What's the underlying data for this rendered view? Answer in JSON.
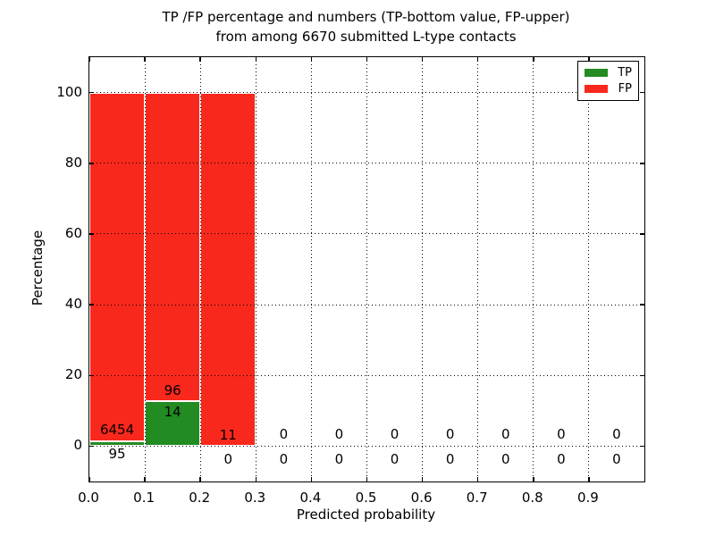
{
  "chart_data": {
    "type": "bar",
    "stacked": true,
    "title_line1": "TP /FP percentage and numbers (TP-bottom value, FP-upper)",
    "title_line2": "from among 6670 submitted L-type contacts",
    "xlabel": "Predicted probability",
    "ylabel": "Percentage",
    "total_submitted_contacts": 6670,
    "xlim": [
      0.0,
      1.0
    ],
    "ylim": [
      -10,
      110
    ],
    "yticks": [
      0,
      20,
      40,
      60,
      80,
      100
    ],
    "ytick_labels": [
      "0",
      "20",
      "40",
      "60",
      "80",
      "100"
    ],
    "xticks": [
      0.0,
      0.1,
      0.2,
      0.3,
      0.4,
      0.5,
      0.6,
      0.7,
      0.8,
      0.9
    ],
    "xtick_labels": [
      "0.0",
      "0.1",
      "0.2",
      "0.3",
      "0.4",
      "0.5",
      "0.6",
      "0.7",
      "0.8",
      "0.9"
    ],
    "grid": "dotted-black-on-top",
    "tp_color": "#228b22",
    "fp_color": "#f9281c",
    "legend": {
      "position": "upper-right",
      "entries": [
        {
          "label": "TP",
          "color": "#228b22"
        },
        {
          "label": "FP",
          "color": "#f9281c"
        }
      ]
    },
    "bins": [
      {
        "range": [
          0.0,
          0.1
        ],
        "tp": 95,
        "fp": 6454,
        "tp_pct": 1.45,
        "fp_pct": 98.55,
        "fp_label_y": 4.6,
        "tp_label_y": -2.2
      },
      {
        "range": [
          0.1,
          0.2
        ],
        "tp": 14,
        "fp": 96,
        "tp_pct": 12.73,
        "fp_pct": 87.27,
        "fp_label_y": 15.8,
        "tp_label_y": 9.7
      },
      {
        "range": [
          0.2,
          0.3
        ],
        "tp": 0,
        "fp": 11,
        "tp_pct": 0,
        "fp_pct": 100,
        "fp_label_y": 3.2,
        "tp_label_y": -3.7
      },
      {
        "range": [
          0.3,
          0.4
        ],
        "tp": 0,
        "fp": 0,
        "tp_pct": 0,
        "fp_pct": 0,
        "fp_label_y": 3.4,
        "tp_label_y": -3.7
      },
      {
        "range": [
          0.4,
          0.5
        ],
        "tp": 0,
        "fp": 0,
        "tp_pct": 0,
        "fp_pct": 0,
        "fp_label_y": 3.4,
        "tp_label_y": -3.7
      },
      {
        "range": [
          0.5,
          0.6
        ],
        "tp": 0,
        "fp": 0,
        "tp_pct": 0,
        "fp_pct": 0,
        "fp_label_y": 3.4,
        "tp_label_y": -3.7
      },
      {
        "range": [
          0.6,
          0.7
        ],
        "tp": 0,
        "fp": 0,
        "tp_pct": 0,
        "fp_pct": 0,
        "fp_label_y": 3.4,
        "tp_label_y": -3.7
      },
      {
        "range": [
          0.7,
          0.8
        ],
        "tp": 0,
        "fp": 0,
        "tp_pct": 0,
        "fp_pct": 0,
        "fp_label_y": 3.4,
        "tp_label_y": -3.7
      },
      {
        "range": [
          0.8,
          0.9
        ],
        "tp": 0,
        "fp": 0,
        "tp_pct": 0,
        "fp_pct": 0,
        "fp_label_y": 3.4,
        "tp_label_y": -3.7
      },
      {
        "range": [
          0.9,
          1.0
        ],
        "tp": 0,
        "fp": 0,
        "tp_pct": 0,
        "fp_pct": 0,
        "fp_label_y": 3.4,
        "tp_label_y": -3.7
      }
    ]
  }
}
